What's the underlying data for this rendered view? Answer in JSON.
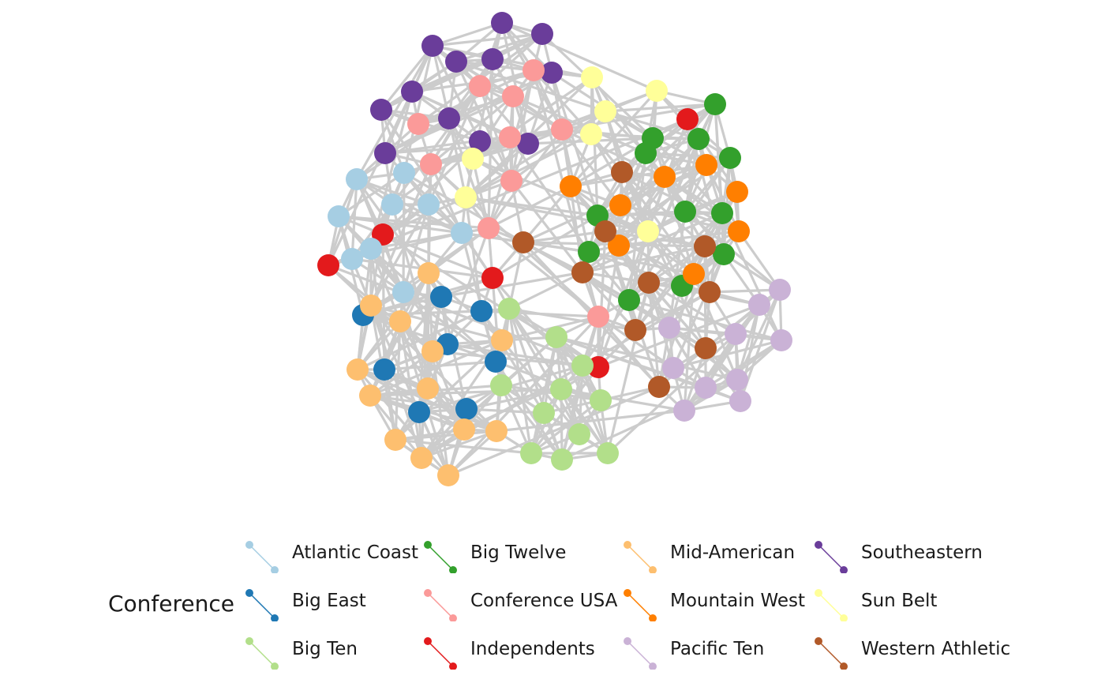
{
  "legend": {
    "title": "Conference",
    "items": [
      {
        "name": "Atlantic Coast",
        "color": "#a6cee3"
      },
      {
        "name": "Big East",
        "color": "#1f78b4"
      },
      {
        "name": "Big Ten",
        "color": "#b2df8a"
      },
      {
        "name": "Big Twelve",
        "color": "#33a02c"
      },
      {
        "name": "Conference USA",
        "color": "#fb9a99"
      },
      {
        "name": "Independents",
        "color": "#e31a1c"
      },
      {
        "name": "Mid-American",
        "color": "#fdbf6f"
      },
      {
        "name": "Mountain West",
        "color": "#ff7f00"
      },
      {
        "name": "Pacific Ten",
        "color": "#cab2d6"
      },
      {
        "name": "Southeastern",
        "color": "#6a3d9a"
      },
      {
        "name": "Sun Belt",
        "color": "#ffff99"
      },
      {
        "name": "Western Athletic",
        "color": "#b15928"
      }
    ]
  },
  "edge_color": "#cccccc"
}
